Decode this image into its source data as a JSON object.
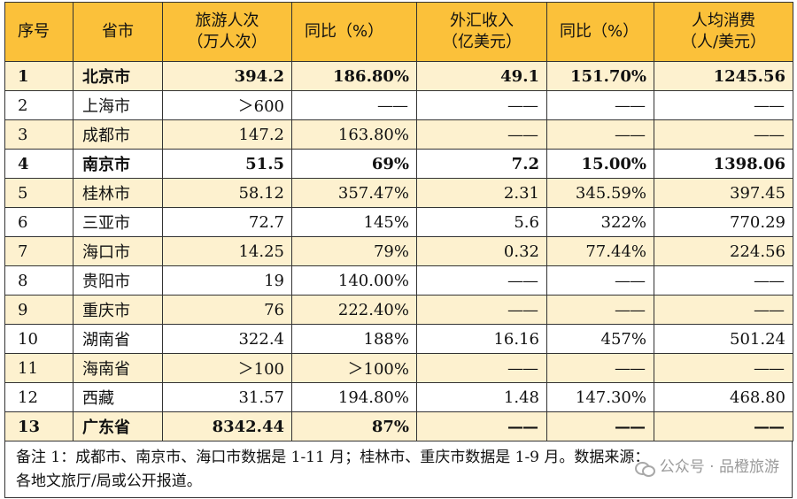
{
  "headers": {
    "idx": "序号",
    "city": "省市",
    "visitors_l1": "旅游人次",
    "visitors_l2": "（万人次）",
    "visitors_yoy": "同比（%）",
    "fx_l1": "外汇收入",
    "fx_l2": "（亿美元）",
    "fx_yoy": "同比（%）",
    "spend_l1": "人均消费",
    "spend_l2": "（人/美元）"
  },
  "rows": [
    {
      "idx": "1",
      "city": "北京市",
      "visitors": "394.2",
      "visitors_yoy": "186.80%",
      "fx": "49.1",
      "fx_yoy": "151.70%",
      "spend": "1245.56"
    },
    {
      "idx": "2",
      "city": "上海市",
      "visitors": "＞600",
      "visitors_yoy": "——",
      "fx": "——",
      "fx_yoy": "——",
      "spend": "——"
    },
    {
      "idx": "3",
      "city": "成都市",
      "visitors": "147.2",
      "visitors_yoy": "163.80%",
      "fx": "——",
      "fx_yoy": "——",
      "spend": "——"
    },
    {
      "idx": "4",
      "city": "南京市",
      "visitors": "51.5",
      "visitors_yoy": "69%",
      "fx": "7.2",
      "fx_yoy": "15.00%",
      "spend": "1398.06"
    },
    {
      "idx": "5",
      "city": "桂林市",
      "visitors": "58.12",
      "visitors_yoy": "357.47%",
      "fx": "2.31",
      "fx_yoy": "345.59%",
      "spend": "397.45"
    },
    {
      "idx": "6",
      "city": "三亚市",
      "visitors": "72.7",
      "visitors_yoy": "145%",
      "fx": "5.6",
      "fx_yoy": "322%",
      "spend": "770.29"
    },
    {
      "idx": "7",
      "city": "海口市",
      "visitors": "14.25",
      "visitors_yoy": "79%",
      "fx": "0.32",
      "fx_yoy": "77.44%",
      "spend": "224.56"
    },
    {
      "idx": "8",
      "city": "贵阳市",
      "visitors": "19",
      "visitors_yoy": "140.00%",
      "fx": "——",
      "fx_yoy": "——",
      "spend": "——"
    },
    {
      "idx": "9",
      "city": "重庆市",
      "visitors": "76",
      "visitors_yoy": "222.40%",
      "fx": "——",
      "fx_yoy": "——",
      "spend": "——"
    },
    {
      "idx": "10",
      "city": "湖南省",
      "visitors": "322.4",
      "visitors_yoy": "188%",
      "fx": "16.16",
      "fx_yoy": "457%",
      "spend": "501.24"
    },
    {
      "idx": "11",
      "city": "海南省",
      "visitors": "＞100",
      "visitors_yoy": "＞100%",
      "fx": "——",
      "fx_yoy": "——",
      "spend": "——"
    },
    {
      "idx": "12",
      "city": "西藏",
      "visitors": "31.57",
      "visitors_yoy": "194.80%",
      "fx": "1.48",
      "fx_yoy": "147.30%",
      "spend": "468.80"
    },
    {
      "idx": "13",
      "city": "广东省",
      "visitors": "8342.44",
      "visitors_yoy": "87%",
      "fx": "——",
      "fx_yoy": "——",
      "spend": "——"
    }
  ],
  "note": {
    "line1": "备注 1：成都市、南京市、海口市数据是 1-11 月；桂林市、重庆市数据是 1-9 月。数据来源：",
    "line2": "各地文旅厅/局或公开报道。"
  },
  "watermark": {
    "icon": "wechat-icon",
    "text": "公众号 · 品橙旅游"
  },
  "colors": {
    "header_bg": "#fbc13a",
    "odd_row_bg": "#fdf1cf",
    "even_row_bg": "#ffffff"
  },
  "bold_rows": [
    "1",
    "4",
    "13"
  ]
}
